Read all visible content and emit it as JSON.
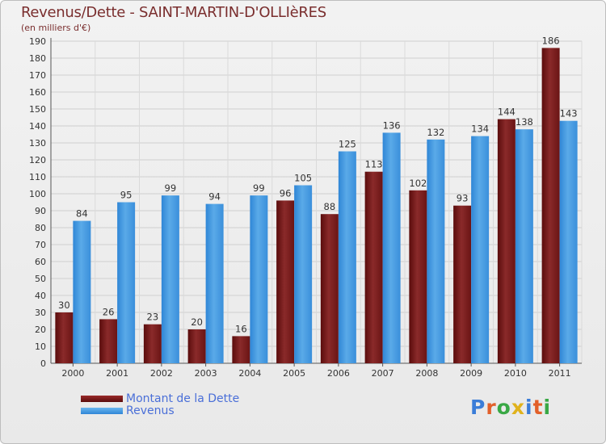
{
  "chart_data": {
    "type": "bar",
    "title": "Revenus/Dette - SAINT-MARTIN-D'OLLIèRES",
    "subtitle": "(en milliers d'€)",
    "categories": [
      "2000",
      "2001",
      "2002",
      "2003",
      "2004",
      "2005",
      "2006",
      "2007",
      "2008",
      "2009",
      "2010",
      "2011"
    ],
    "series": [
      {
        "name": "Montant de la Dette",
        "color": "#7a1a1a",
        "values": [
          30,
          26,
          23,
          20,
          16,
          96,
          88,
          113,
          102,
          93,
          144,
          186
        ]
      },
      {
        "name": "Revenus",
        "color": "#3f97e0",
        "values": [
          84,
          95,
          99,
          94,
          99,
          105,
          125,
          136,
          132,
          134,
          138,
          143
        ]
      }
    ],
    "ylim": [
      0,
      190
    ],
    "yticks": [
      0,
      10,
      20,
      30,
      40,
      50,
      60,
      70,
      80,
      90,
      100,
      110,
      120,
      130,
      140,
      150,
      160,
      170,
      180,
      190
    ],
    "grid": true,
    "legend_position": "bottom-left"
  },
  "logo": {
    "text": "Proxiti",
    "colors": [
      "#3b7dd8",
      "#e2602a",
      "#39a845",
      "#e0b21c",
      "#3b7dd8",
      "#e2602a",
      "#39a845"
    ]
  }
}
